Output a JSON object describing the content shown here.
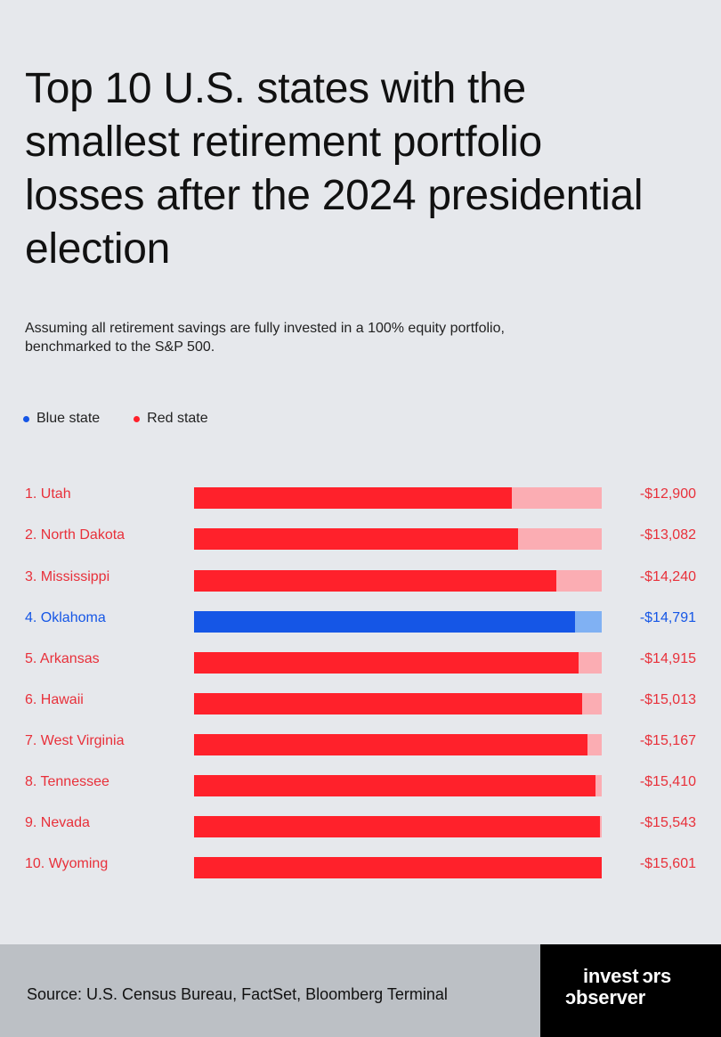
{
  "title": "Top 10 U.S. states with the smallest retirement portfolio losses after the 2024 presidential election",
  "subtitle": "Assuming all retirement savings are fully invested in a 100% equity portfolio, benchmarked to the S&P 500.",
  "colors": {
    "blue": "#1556e6",
    "blue_light": "#80b1f3",
    "red": "#ff212b",
    "red_light": "#fbadb3",
    "red_text": "#e8303a"
  },
  "legend": [
    {
      "label": "Blue state",
      "party": "blue"
    },
    {
      "label": "Red state",
      "party": "red"
    }
  ],
  "chart_data": {
    "type": "bar",
    "orientation": "horizontal",
    "title": "Top 10 U.S. states with the smallest retirement portfolio losses after the 2024 presidential election",
    "xlim": [
      0,
      15601
    ],
    "categories": [
      "1. Utah",
      "2. North Dakota",
      "3. Mississippi",
      "4. Oklahoma",
      "5. Arkansas",
      "6. Hawaii",
      "7. West Virginia",
      "8. Tennessee",
      "9. Nevada",
      "10. Wyoming"
    ],
    "values": [
      12900,
      13082,
      14240,
      14791,
      14915,
      15013,
      15167,
      15410,
      15543,
      15601
    ],
    "value_labels": [
      "-$12,900",
      "-$13,082",
      "-$14,240",
      "-$14,791",
      "-$14,915",
      "-$15,013",
      "-$15,167",
      "-$15,410",
      "-$15,543",
      "-$15,601"
    ],
    "parties": [
      "red",
      "red",
      "red",
      "blue",
      "red",
      "red",
      "red",
      "red",
      "red",
      "red"
    ]
  },
  "footer": {
    "source": "Source: U.S. Census Bureau, FactSet, Bloomberg Terminal",
    "brand_line1": "invest ɔrs",
    "brand_line2": "ɔbserver"
  }
}
